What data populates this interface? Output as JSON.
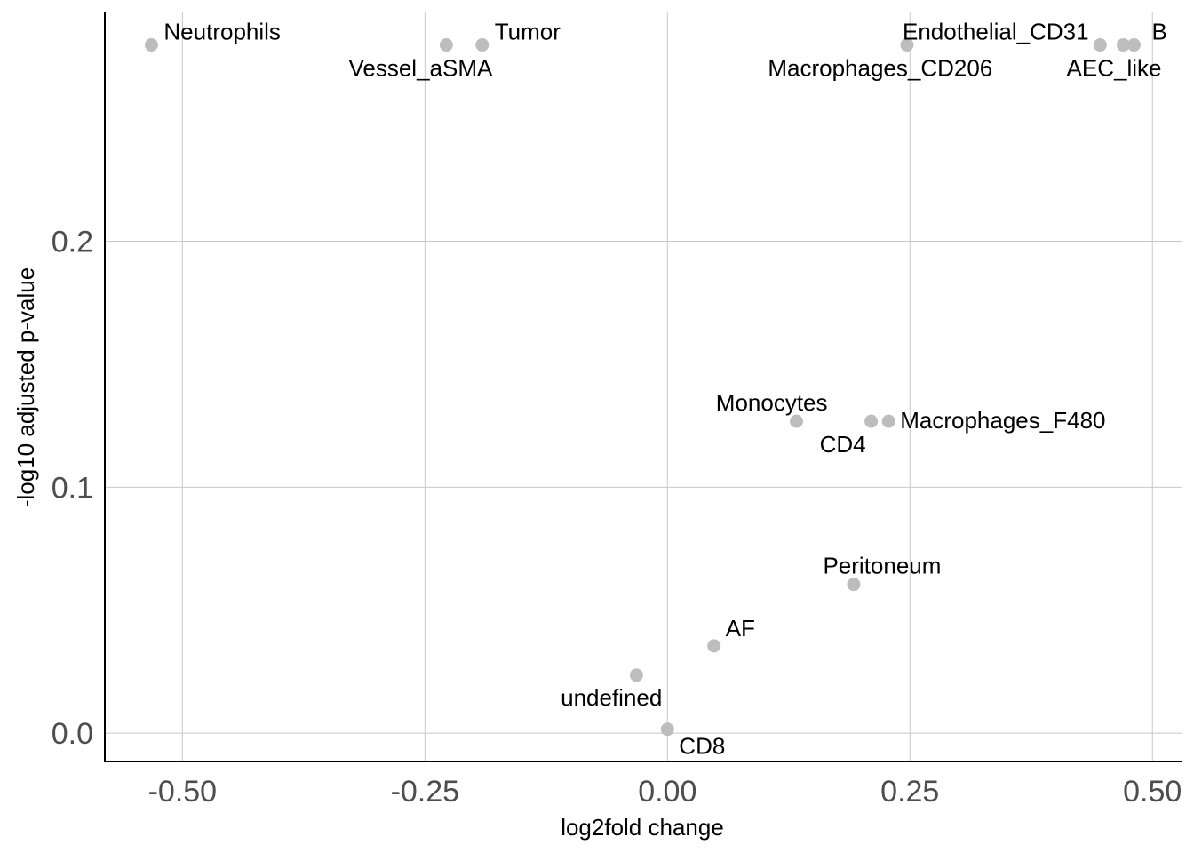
{
  "chart_data": {
    "type": "scatter",
    "xlabel": "log2fold change",
    "ylabel": "-log10 adjusted p-value",
    "xlim": [
      -0.58,
      0.53
    ],
    "ylim": [
      -0.0115,
      0.293
    ],
    "x_ticks": [
      {
        "value": -0.5,
        "label": "-0.50"
      },
      {
        "value": -0.25,
        "label": "-0.25"
      },
      {
        "value": 0,
        "label": "0.00"
      },
      {
        "value": 0.25,
        "label": "0.25"
      },
      {
        "value": 0.5,
        "label": "0.50"
      }
    ],
    "y_ticks": [
      {
        "value": 0,
        "label": "0.0"
      },
      {
        "value": 0.1,
        "label": "0.1"
      },
      {
        "value": 0.2,
        "label": "0.2"
      }
    ],
    "grid": true,
    "point_color": "#bdbdbd",
    "points": [
      {
        "label": "Neutrophils",
        "x": -0.532,
        "y": 0.2798,
        "anchor": "start",
        "dx": 14,
        "dy": -6
      },
      {
        "label": "Vessel_aSMA",
        "x": -0.228,
        "y": 0.2798,
        "anchor": "end",
        "dx": 52,
        "dy": 35
      },
      {
        "label": "Tumor",
        "x": -0.191,
        "y": 0.2798,
        "anchor": "start",
        "dx": 14,
        "dy": -6
      },
      {
        "label": "Endothelial_CD31",
        "x": 0.247,
        "y": 0.2798,
        "anchor": "start",
        "dx": -5,
        "dy": -6
      },
      {
        "label": "Macrophages_CD206",
        "x": 0.446,
        "y": 0.2798,
        "anchor": "end",
        "dx": -121,
        "dy": 35
      },
      {
        "label": "AEC_like",
        "x": 0.47,
        "y": 0.2798,
        "anchor": "end",
        "dx": 43,
        "dy": 35
      },
      {
        "label": "B",
        "x": 0.481,
        "y": 0.2798,
        "anchor": "start",
        "dx": 20,
        "dy": -6
      },
      {
        "label": "Monocytes",
        "x": 0.133,
        "y": 0.1268,
        "anchor": "end",
        "dx": 35,
        "dy": -12
      },
      {
        "label": "CD4",
        "x": 0.21,
        "y": 0.1268,
        "anchor": "end",
        "dx": -6,
        "dy": 35
      },
      {
        "label": "Macrophages_F480",
        "x": 0.228,
        "y": 0.1268,
        "anchor": "start",
        "dx": 13,
        "dy": 8
      },
      {
        "label": "Peritoneum",
        "x": 0.192,
        "y": 0.0605,
        "anchor": "middle",
        "dx": 32,
        "dy": -12
      },
      {
        "label": "AF",
        "x": 0.048,
        "y": 0.0355,
        "anchor": "start",
        "dx": 13,
        "dy": -11
      },
      {
        "label": "undefined",
        "x": -0.032,
        "y": 0.0236,
        "anchor": "end",
        "dx": 29,
        "dy": 34
      },
      {
        "label": "CD8",
        "x": 0.0,
        "y": 0.0016,
        "anchor": "start",
        "dx": 13,
        "dy": 28
      }
    ]
  }
}
